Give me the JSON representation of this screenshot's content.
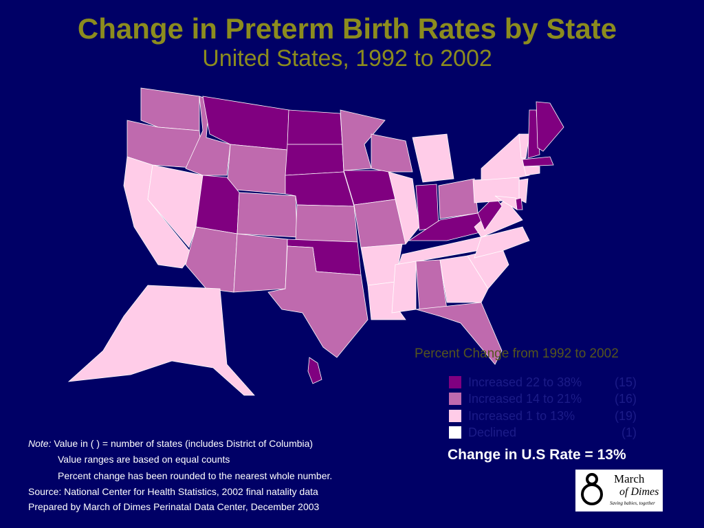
{
  "header": {
    "title": "Change in Preterm Birth Rates by State",
    "subtitle": "United States, 1992 to 2002"
  },
  "legend": {
    "title": "Percent Change from 1992 to 2002",
    "items": [
      {
        "label": "Increased 22 to 38%",
        "count": "(15)"
      },
      {
        "label": "Increased 14 to 21%",
        "count": "(16)"
      },
      {
        "label": "Increased 1 to 13%",
        "count": "(19)"
      },
      {
        "label": "Declined",
        "count": "(1)"
      }
    ]
  },
  "us_rate": "Change in U.S Rate = 13%",
  "notes": {
    "note_label": "Note:",
    "lines": [
      "Value in ( ) = number of states (includes District of Columbia)",
      "Value ranges are based on equal counts",
      "Percent change has been rounded to the nearest whole number."
    ],
    "source": "Source: National Center for Health Statistics, 2002 final natality data",
    "prepared": "Prepared by March of Dimes Perinatal Data Center, December 2003"
  },
  "logo": {
    "line1": "March",
    "line2": "of Dimes",
    "tagline": "Saving babies, together"
  }
}
